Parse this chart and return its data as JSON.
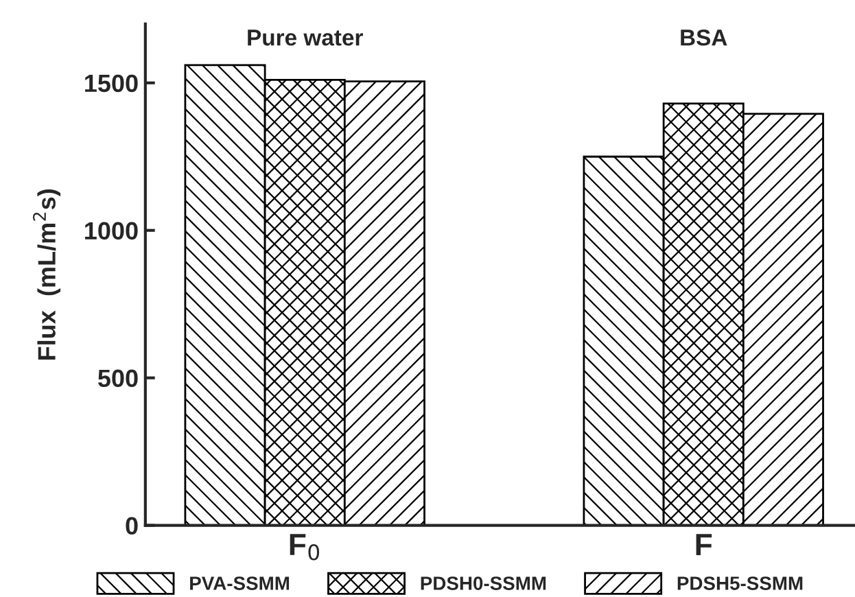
{
  "chart_data": {
    "type": "bar",
    "categories": [
      "F$_{0}$",
      "F"
    ],
    "ylabel": "Flux  (mL/m$^{2}$s)",
    "annotations": [
      "Pure water",
      "BSA"
    ],
    "series": [
      {
        "name": "PVA-SSMM",
        "color": "#000000",
        "values": [
          1560,
          1250
        ]
      },
      {
        "name": "PDSH0-SSMM",
        "color": "#000000",
        "values": [
          1510,
          1430
        ]
      },
      {
        "name": "PDSH5-SSMM",
        "color": "#000000",
        "values": [
          1505,
          1395
        ]
      }
    ],
    "ylim": [
      0,
      1700
    ],
    "yticks": [
      0,
      500,
      1000,
      1500
    ],
    "grid": false,
    "legend": "bottom"
  }
}
